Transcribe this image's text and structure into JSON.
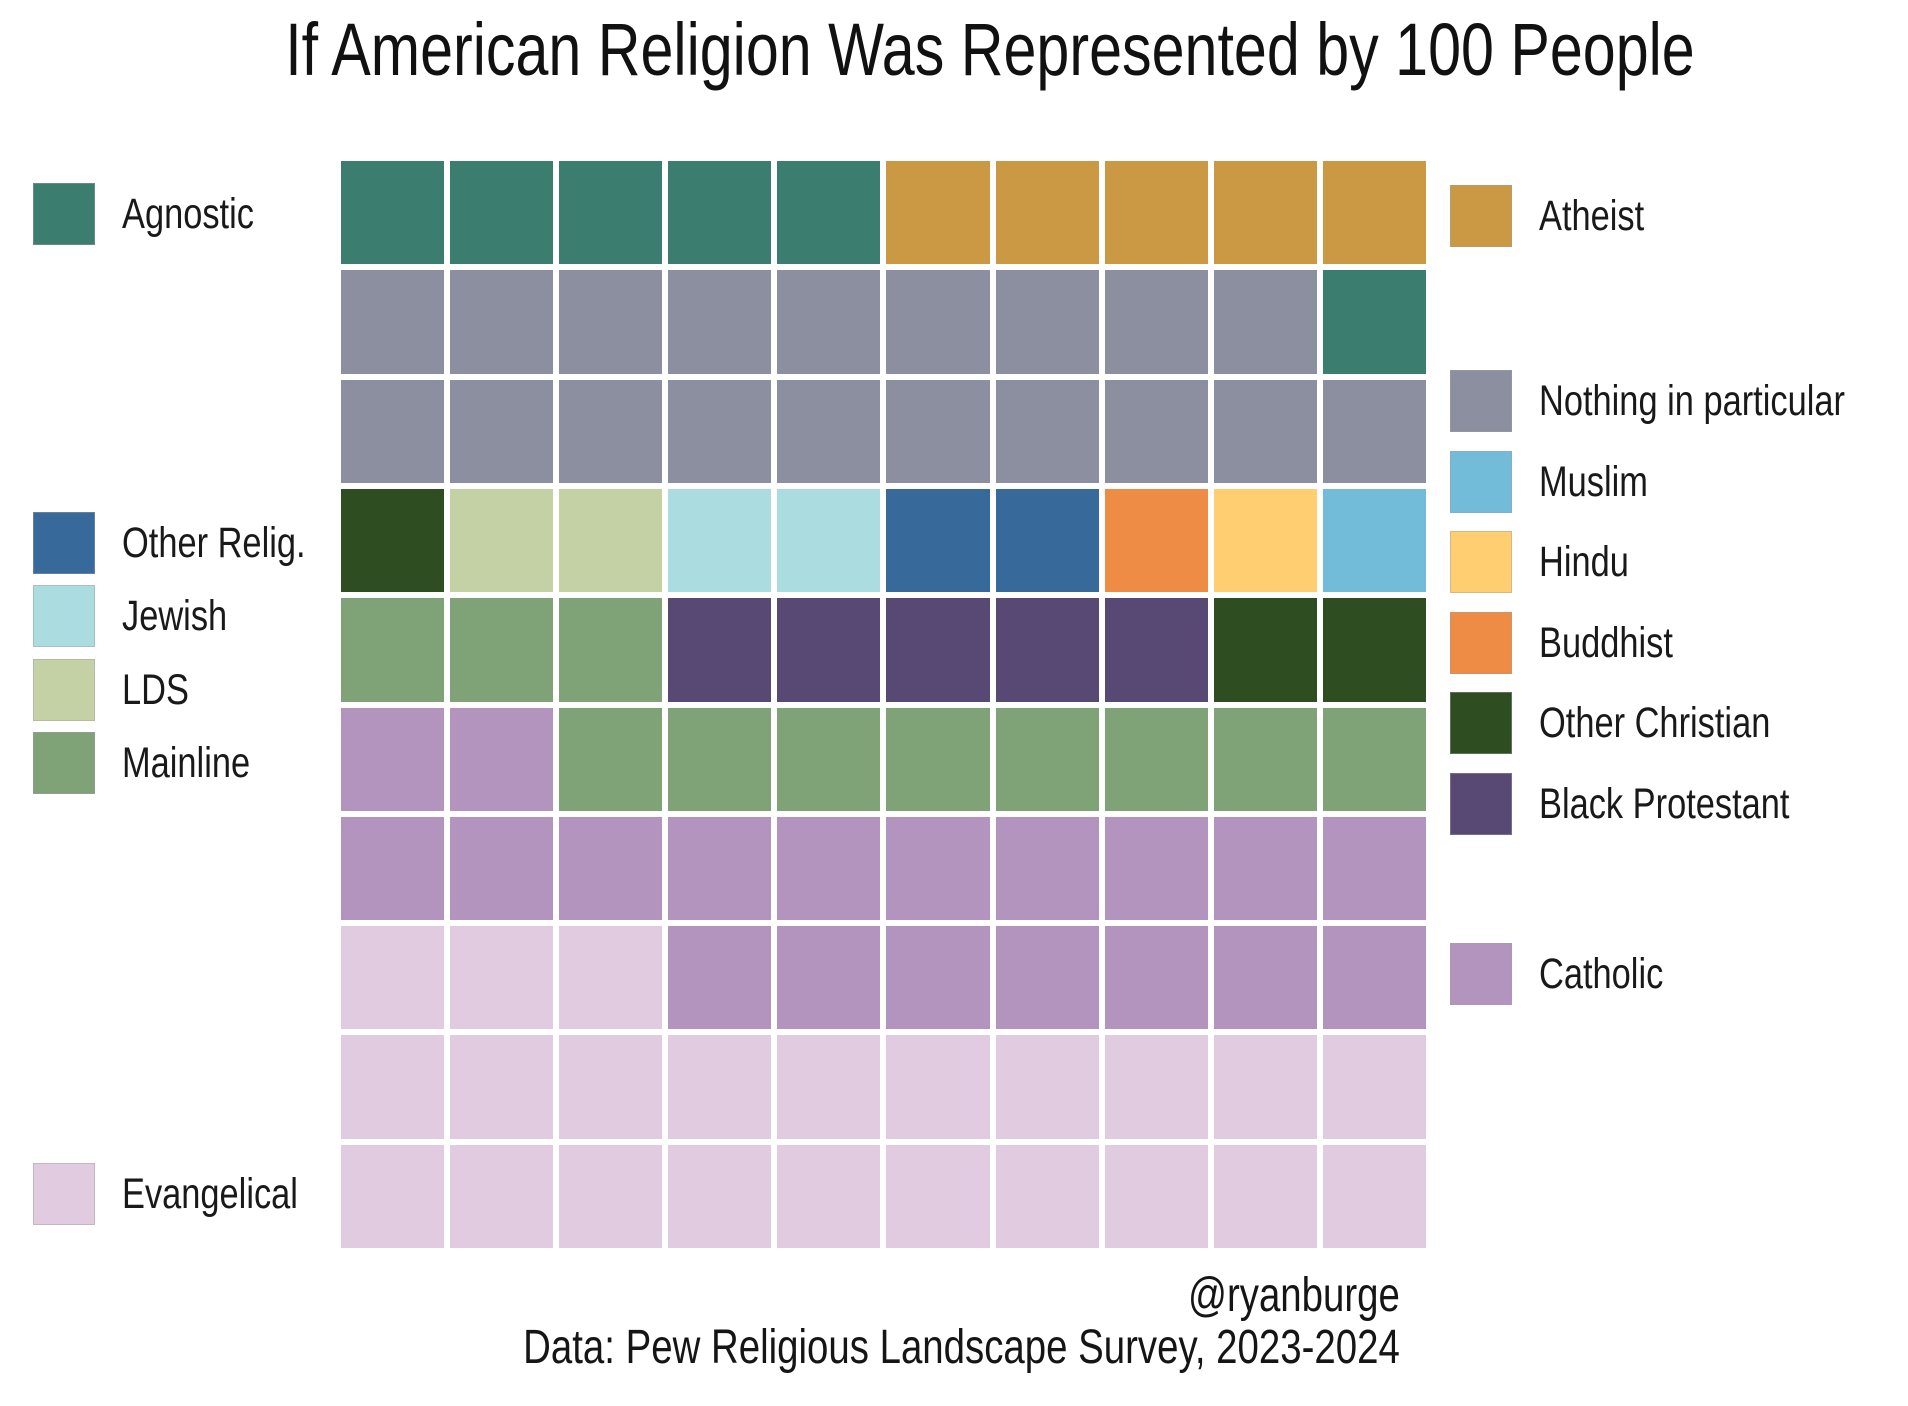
{
  "chart_data": {
    "type": "waffle",
    "title": "If American Religion Was Represented by 100 People",
    "total_people": 100,
    "grid_size": {
      "rows": 10,
      "cols": 10
    },
    "categories": [
      {
        "id": "evangelical",
        "label": "Evangelical",
        "count": 23,
        "color": "#E0CBE1"
      },
      {
        "id": "catholic",
        "label": "Catholic",
        "count": 19,
        "color": "#B394BE"
      },
      {
        "id": "mainline",
        "label": "Mainline",
        "count": 11,
        "color": "#7FA276"
      },
      {
        "id": "black_protestant",
        "label": "Black Protestant",
        "count": 5,
        "color": "#574874"
      },
      {
        "id": "other_christian",
        "label": "Other Christian",
        "count": 3,
        "color": "#2E4E22"
      },
      {
        "id": "lds",
        "label": "LDS",
        "count": 2,
        "color": "#C4D1A4"
      },
      {
        "id": "jewish",
        "label": "Jewish",
        "count": 2,
        "color": "#ABDCE0"
      },
      {
        "id": "other_religion",
        "label": "Other Relig.",
        "count": 2,
        "color": "#38699B"
      },
      {
        "id": "buddhist",
        "label": "Buddhist",
        "count": 1,
        "color": "#EE8B44"
      },
      {
        "id": "hindu",
        "label": "Hindu",
        "count": 1,
        "color": "#FECE70"
      },
      {
        "id": "muslim",
        "label": "Muslim",
        "count": 1,
        "color": "#72BCD9"
      },
      {
        "id": "nothing",
        "label": "Nothing in particular",
        "count": 19,
        "color": "#8B8FA0"
      },
      {
        "id": "agnostic",
        "label": "Agnostic",
        "count": 6,
        "color": "#3B7D6E"
      },
      {
        "id": "atheist",
        "label": "Atheist",
        "count": 5,
        "color": "#CB9843"
      }
    ],
    "grid_rows_top_to_bottom": [
      [
        "agnostic",
        "agnostic",
        "agnostic",
        "agnostic",
        "agnostic",
        "atheist",
        "atheist",
        "atheist",
        "atheist",
        "atheist"
      ],
      [
        "nothing",
        "nothing",
        "nothing",
        "nothing",
        "nothing",
        "nothing",
        "nothing",
        "nothing",
        "nothing",
        "agnostic"
      ],
      [
        "nothing",
        "nothing",
        "nothing",
        "nothing",
        "nothing",
        "nothing",
        "nothing",
        "nothing",
        "nothing",
        "nothing"
      ],
      [
        "other_christian",
        "lds",
        "lds",
        "jewish",
        "jewish",
        "other_religion",
        "other_religion",
        "buddhist",
        "hindu",
        "muslim"
      ],
      [
        "mainline",
        "mainline",
        "mainline",
        "black_protestant",
        "black_protestant",
        "black_protestant",
        "black_protestant",
        "black_protestant",
        "other_christian",
        "other_christian"
      ],
      [
        "catholic",
        "catholic",
        "mainline",
        "mainline",
        "mainline",
        "mainline",
        "mainline",
        "mainline",
        "mainline",
        "mainline"
      ],
      [
        "catholic",
        "catholic",
        "catholic",
        "catholic",
        "catholic",
        "catholic",
        "catholic",
        "catholic",
        "catholic",
        "catholic"
      ],
      [
        "evangelical",
        "evangelical",
        "evangelical",
        "catholic",
        "catholic",
        "catholic",
        "catholic",
        "catholic",
        "catholic",
        "catholic"
      ],
      [
        "evangelical",
        "evangelical",
        "evangelical",
        "evangelical",
        "evangelical",
        "evangelical",
        "evangelical",
        "evangelical",
        "evangelical",
        "evangelical"
      ],
      [
        "evangelical",
        "evangelical",
        "evangelical",
        "evangelical",
        "evangelical",
        "evangelical",
        "evangelical",
        "evangelical",
        "evangelical",
        "evangelical"
      ]
    ],
    "legend_groups": {
      "left_top": [
        "agnostic"
      ],
      "left_middle": [
        "other_religion",
        "jewish",
        "lds",
        "mainline"
      ],
      "left_bottom": [
        "evangelical"
      ],
      "right_top": [
        "atheist"
      ],
      "right_middle": [
        "nothing",
        "muslim",
        "hindu",
        "buddhist",
        "other_christian",
        "black_protestant"
      ],
      "right_bottom": [
        "catholic"
      ]
    },
    "legend_position": "both-sides",
    "grid_lines": "white gutters between squares"
  },
  "caption": {
    "handle": "@ryanburge",
    "source": "Data: Pew Religious Landscape Survey, 2023-2024"
  }
}
